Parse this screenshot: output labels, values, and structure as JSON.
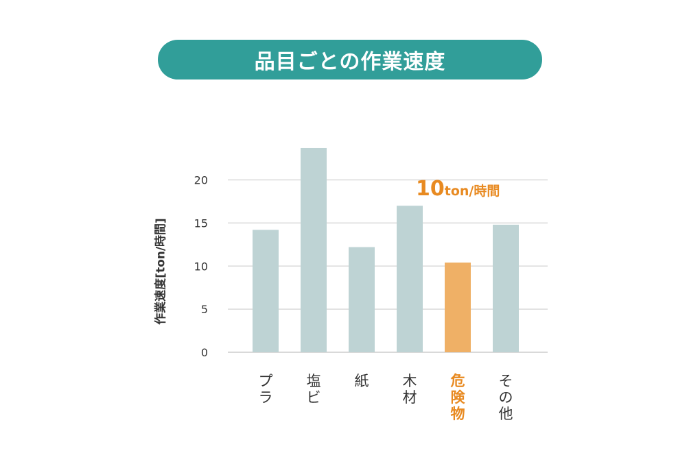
{
  "header": {
    "title": "品目ごとの作業速度"
  },
  "chart_data": {
    "type": "bar",
    "title": "品目ごとの作業速度",
    "ylabel": "作業速度[ton/時間]",
    "xlabel": "",
    "categories": [
      "プラ",
      "塩ビ",
      "紙",
      "木材",
      "危険物",
      "その他"
    ],
    "values": [
      14.2,
      23.7,
      12.2,
      17.0,
      10.4,
      14.8
    ],
    "highlight_index": 4,
    "ylim": [
      0,
      25
    ],
    "yticks": [
      0,
      5,
      10,
      15,
      20
    ],
    "grid": true,
    "colors": {
      "bar": "#bed3d4",
      "highlight_bar": "#efb066",
      "highlight_text": "#e88a21",
      "grid": "#d9d9d9"
    },
    "annotation": {
      "value": "10",
      "unit": "ton/時間"
    }
  }
}
